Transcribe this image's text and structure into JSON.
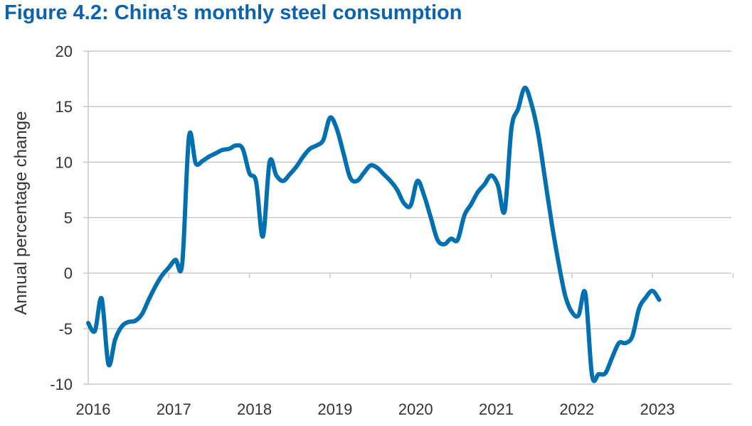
{
  "chart_data": {
    "type": "line",
    "title": "Figure 4.2: China’s monthly steel consumption",
    "xlabel": "",
    "ylabel": "Annual percentage change",
    "ylim": [
      -10,
      20
    ],
    "yticks": [
      "20",
      "15",
      "10",
      "5",
      "0",
      "-5",
      "-10"
    ],
    "xticks": [
      "2016",
      "2017",
      "2018",
      "2019",
      "2020",
      "2021",
      "2022",
      "2023"
    ],
    "xlim": [
      "2016-01",
      "2023-12"
    ],
    "grid": "horizontal",
    "color": "#0070b0",
    "series": [
      {
        "x": [
          "2016-01",
          "2016-02",
          "2016-03",
          "2016-04",
          "2016-05",
          "2016-06",
          "2016-07",
          "2016-08",
          "2016-09",
          "2016-10",
          "2016-11",
          "2016-12",
          "2017-01",
          "2017-02",
          "2017-03",
          "2017-04",
          "2017-05",
          "2017-06",
          "2017-07",
          "2017-08",
          "2017-09",
          "2017-10",
          "2017-11",
          "2017-12",
          "2018-01",
          "2018-02",
          "2018-03",
          "2018-04",
          "2018-05",
          "2018-06",
          "2018-07",
          "2018-08",
          "2018-09",
          "2018-10",
          "2018-11",
          "2018-12",
          "2019-01",
          "2019-02",
          "2019-03",
          "2019-04",
          "2019-05",
          "2019-06",
          "2019-07",
          "2019-08",
          "2019-09",
          "2019-10",
          "2019-11",
          "2019-12",
          "2020-01",
          "2020-02",
          "2020-03",
          "2020-04",
          "2020-05",
          "2020-06",
          "2020-07",
          "2020-08",
          "2020-09",
          "2020-10",
          "2020-11",
          "2020-12",
          "2021-01",
          "2021-02",
          "2021-03",
          "2021-04",
          "2021-05",
          "2021-06",
          "2021-07",
          "2021-08",
          "2021-09",
          "2021-10",
          "2021-11",
          "2021-12",
          "2022-01",
          "2022-02",
          "2022-03",
          "2022-04",
          "2022-05",
          "2022-06",
          "2022-07",
          "2022-08",
          "2022-09",
          "2022-10",
          "2022-11",
          "2022-12",
          "2023-01",
          "2023-02"
        ],
        "values": [
          -4.5,
          -5.2,
          -2.3,
          -8.2,
          -6.0,
          -4.8,
          -4.4,
          -4.3,
          -3.7,
          -2.4,
          -1.2,
          -0.2,
          0.5,
          1.2,
          0.9,
          12.3,
          9.9,
          10.1,
          10.5,
          10.8,
          11.1,
          11.2,
          11.5,
          11.2,
          9.0,
          8.2,
          3.3,
          10.0,
          8.8,
          8.3,
          8.9,
          9.6,
          10.5,
          11.2,
          11.5,
          12.0,
          14.0,
          13.0,
          10.8,
          8.6,
          8.3,
          9.0,
          9.7,
          9.5,
          8.9,
          8.3,
          7.5,
          6.3,
          6.1,
          8.3,
          7.0,
          5.0,
          3.0,
          2.6,
          3.1,
          3.0,
          5.2,
          6.2,
          7.3,
          8.0,
          8.8,
          7.9,
          5.6,
          13.0,
          14.8,
          16.7,
          15.2,
          12.5,
          8.5,
          4.5,
          1.0,
          -2.0,
          -3.5,
          -3.8,
          -1.8,
          -9.2,
          -9.1,
          -9.0,
          -7.6,
          -6.3,
          -6.3,
          -5.7,
          -3.2,
          -2.2,
          -1.6,
          -2.4
        ]
      }
    ]
  }
}
